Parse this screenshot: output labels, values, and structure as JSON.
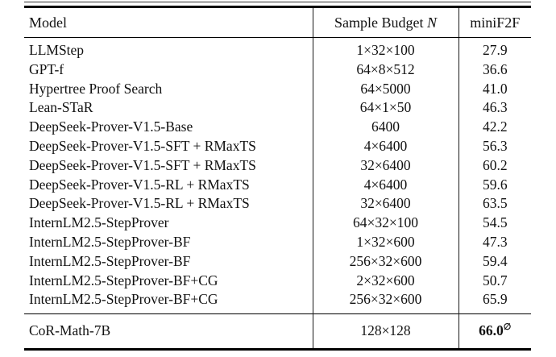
{
  "table": {
    "header": {
      "model": "Model",
      "sample_budget": "Sample Budget",
      "sample_budget_var": "N",
      "minif2f": "miniF2F"
    },
    "rows": [
      {
        "model": "LLMStep",
        "budget": "1×32×100",
        "score": "27.9"
      },
      {
        "model": "GPT-f",
        "budget": "64×8×512",
        "score": "36.6"
      },
      {
        "model": "Hypertree Proof Search",
        "budget": "64×5000",
        "score": "41.0"
      },
      {
        "model": "Lean-STaR",
        "budget": "64×1×50",
        "score": "46.3"
      },
      {
        "model": "DeepSeek-Prover-V1.5-Base",
        "budget": "6400",
        "score": "42.2"
      },
      {
        "model": "DeepSeek-Prover-V1.5-SFT + RMaxTS",
        "budget": "4×6400",
        "score": "56.3"
      },
      {
        "model": "DeepSeek-Prover-V1.5-SFT + RMaxTS",
        "budget": "32×6400",
        "score": "60.2"
      },
      {
        "model": "DeepSeek-Prover-V1.5-RL + RMaxTS",
        "budget": "4×6400",
        "score": "59.6"
      },
      {
        "model": "DeepSeek-Prover-V1.5-RL + RMaxTS",
        "budget": "32×6400",
        "score": "63.5"
      },
      {
        "model": "InternLM2.5-StepProver",
        "budget": "64×32×100",
        "score": "54.5"
      },
      {
        "model": "InternLM2.5-StepProver-BF",
        "budget": "1×32×600",
        "score": "47.3"
      },
      {
        "model": "InternLM2.5-StepProver-BF",
        "budget": "256×32×600",
        "score": "59.4"
      },
      {
        "model": "InternLM2.5-StepProver-BF+CG",
        "budget": "2×32×600",
        "score": "50.7"
      },
      {
        "model": "InternLM2.5-StepProver-BF+CG",
        "budget": "256×32×600",
        "score": "65.9"
      }
    ],
    "final_row": {
      "model": "CoR-Math-7B",
      "budget": "128×128",
      "score": "66.0",
      "score_sup": "∅"
    }
  },
  "colors": {
    "background": "#ffffff",
    "text": "#111111",
    "rule": "#000000"
  }
}
